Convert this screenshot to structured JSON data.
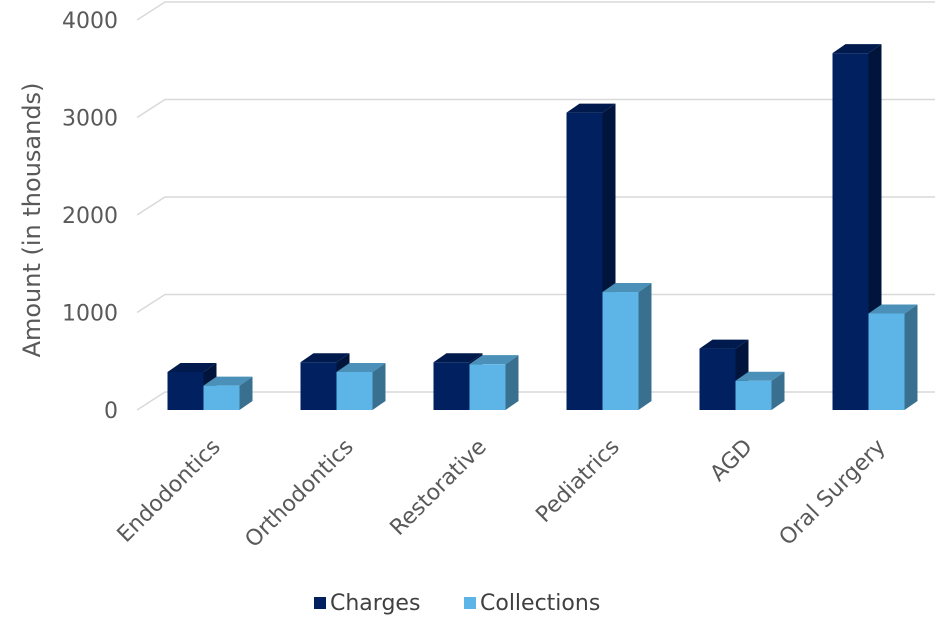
{
  "chart_data": {
    "type": "bar",
    "categories": [
      "Endodontics",
      "Orthodontics",
      "Restorative",
      "Pediatrics",
      "AGD",
      "Oral Surgery"
    ],
    "series": [
      {
        "name": "Charges",
        "values": [
          390,
          490,
          490,
          3050,
          630,
          3660
        ],
        "color": "#002060"
      },
      {
        "name": "Collections",
        "values": [
          250,
          390,
          470,
          1210,
          300,
          990
        ],
        "color": "#5DB4E6"
      }
    ],
    "ylabel": "Amount (in thousands)",
    "xlabel": "",
    "ylim": [
      0,
      4000
    ],
    "yticks": [
      "0",
      "1000",
      "2000",
      "3000",
      "4000"
    ],
    "grid": true,
    "legend_position": "bottom",
    "style": "3d-clustered-column"
  }
}
